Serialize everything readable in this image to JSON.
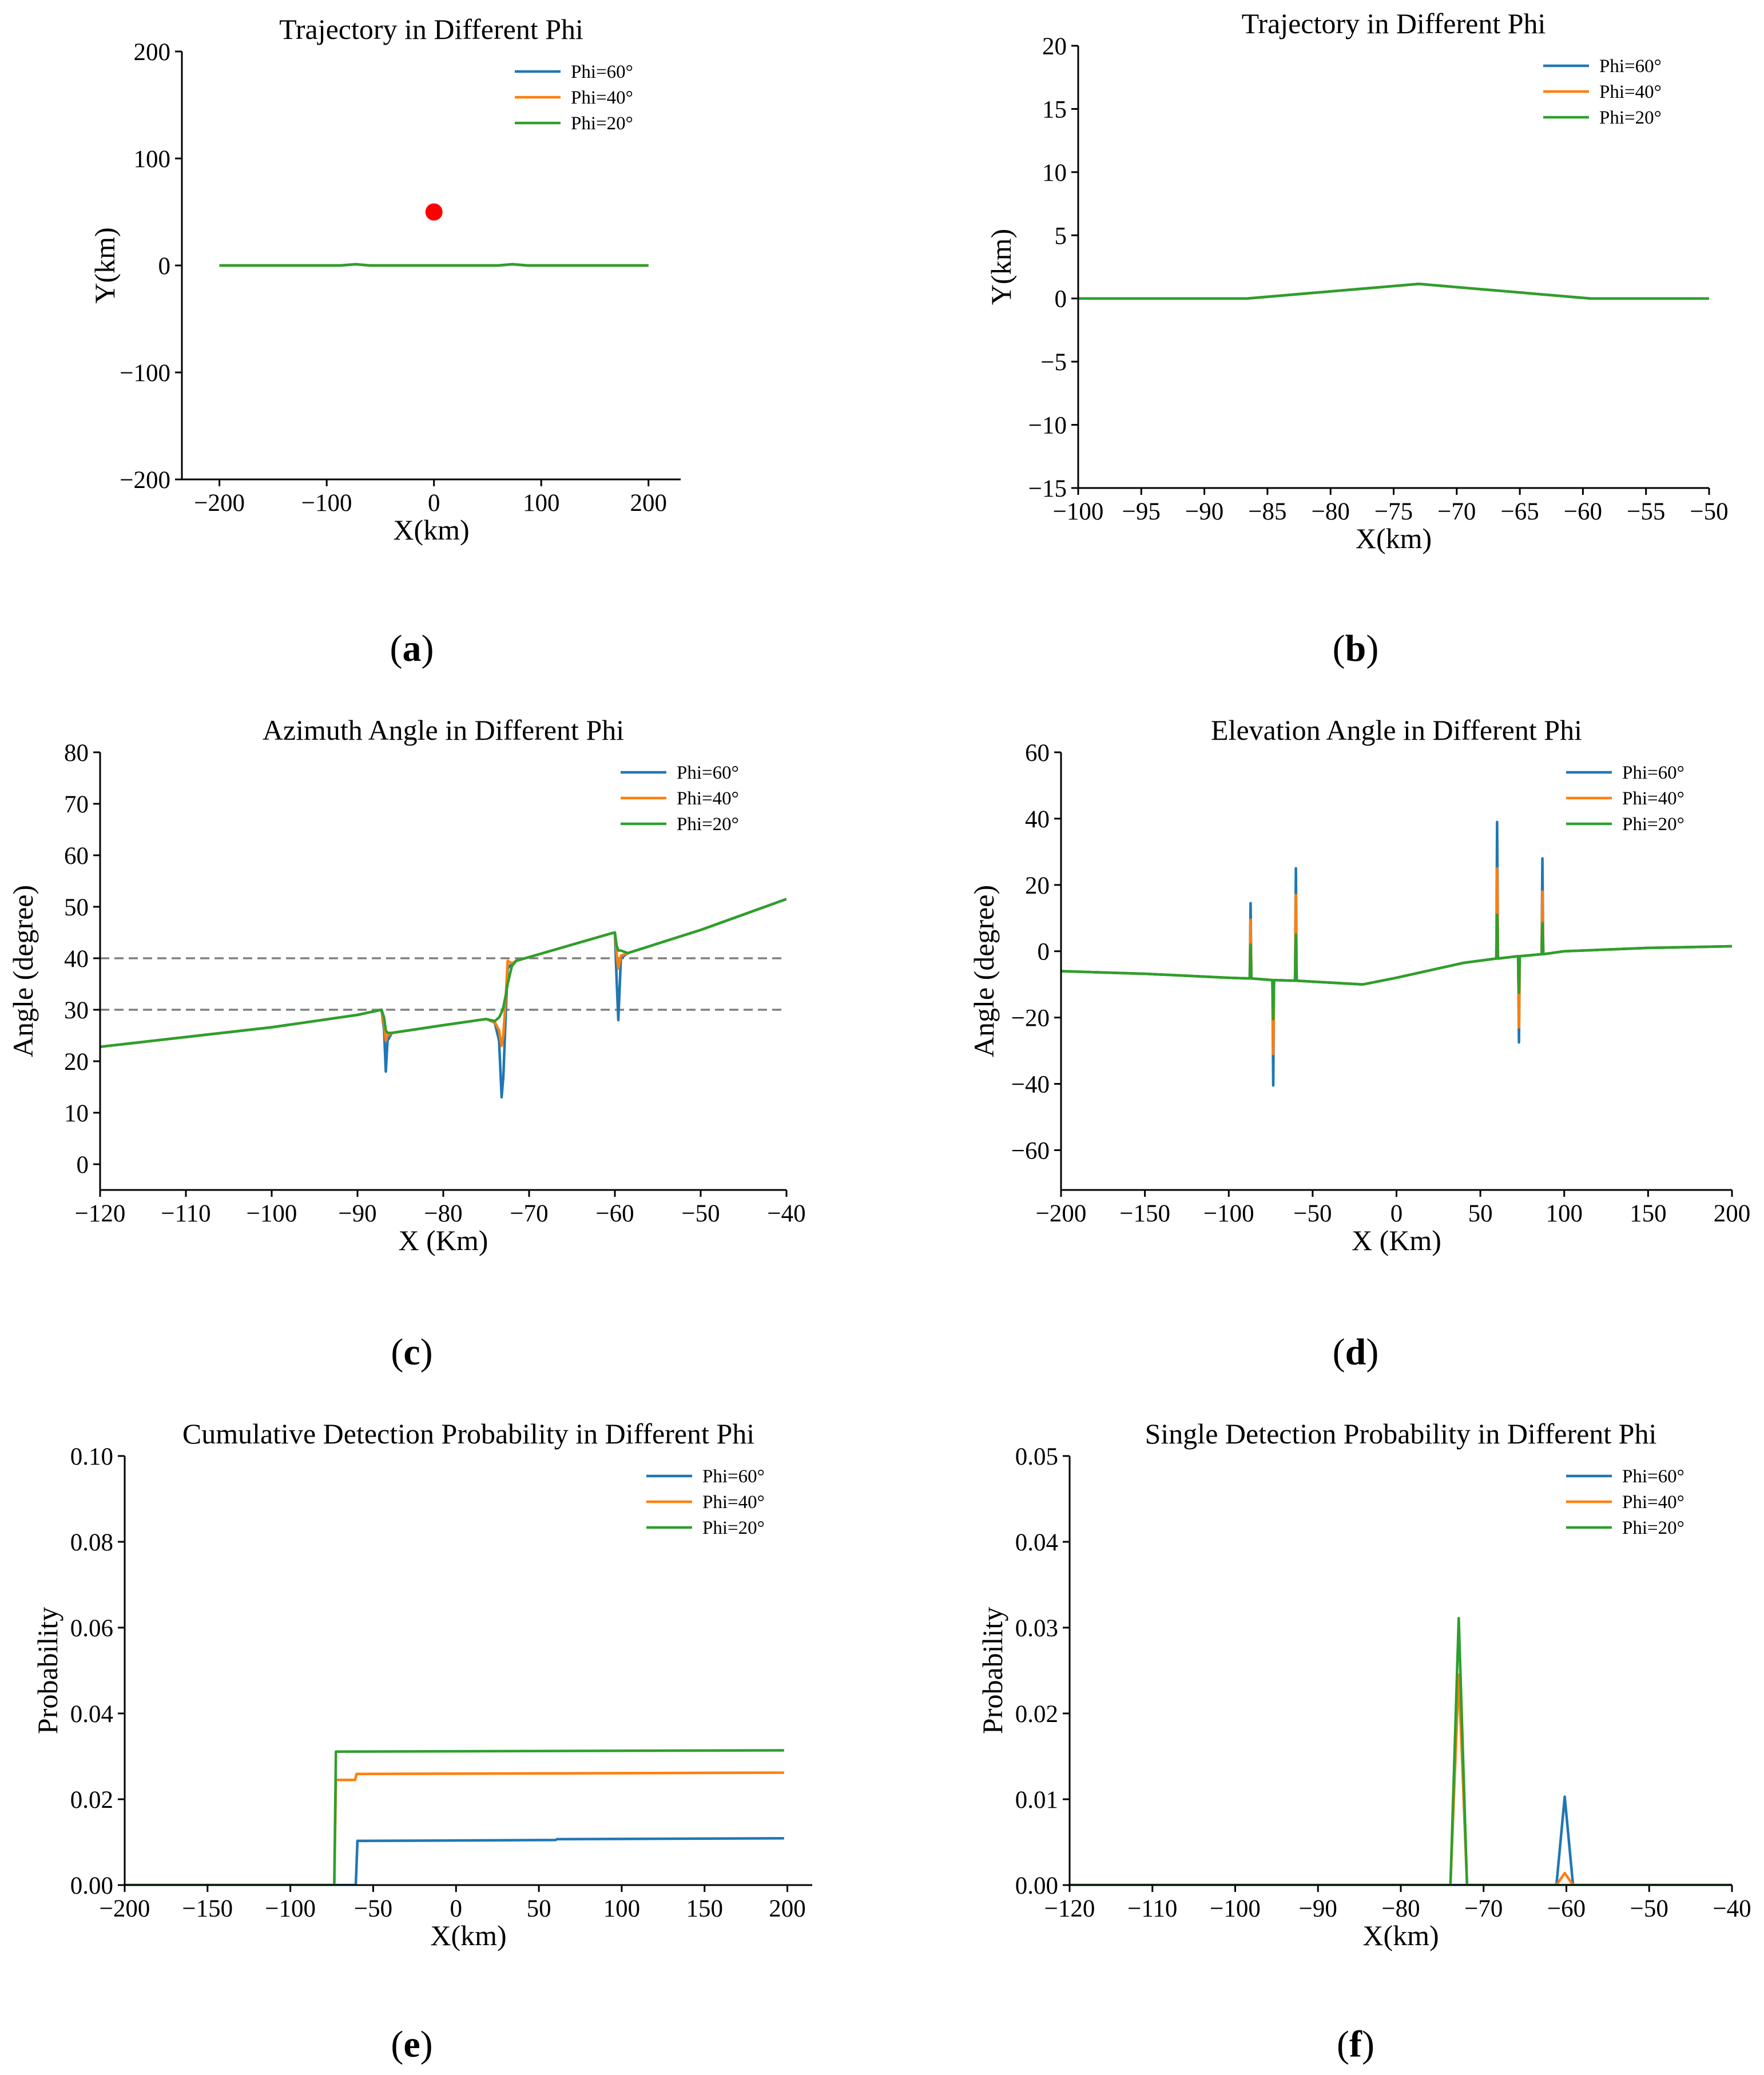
{
  "colors": {
    "phi60": "#1f77b4",
    "phi40": "#ff7f0e",
    "phi20": "#2ca02c",
    "point": "#ff0000",
    "refline": "#808080"
  },
  "chart_data": [
    {
      "id": "a",
      "type": "line",
      "panel_label": "a",
      "title": "Trajectory in Different Phi",
      "xlabel": "X(km)",
      "ylabel": "Y(km)",
      "xlim": [
        -235,
        230
      ],
      "ylim": [
        -200,
        200
      ],
      "xticks": [
        -200,
        -100,
        0,
        100,
        200
      ],
      "yticks": [
        -200,
        -100,
        0,
        100,
        200
      ],
      "xtick_labels": [
        "−200",
        "−100",
        "0",
        "100",
        "200"
      ],
      "ytick_labels": [
        "−200",
        "−100",
        "0",
        "100",
        "200"
      ],
      "legend": [
        "Phi=60°",
        "Phi=40°",
        "Phi=20°"
      ],
      "series": [
        {
          "name": "Phi=60°",
          "color": "#1f77b4",
          "x": [
            -200,
            -87,
            -73,
            -60,
            60,
            73,
            87,
            200
          ],
          "y": [
            0,
            0,
            1.1,
            0,
            0,
            1.1,
            0,
            0
          ]
        },
        {
          "name": "Phi=40°",
          "color": "#ff7f0e",
          "x": [
            -200,
            -87,
            -73,
            -60,
            60,
            73,
            87,
            200
          ],
          "y": [
            0,
            0,
            1.1,
            0,
            0,
            1.1,
            0,
            0
          ]
        },
        {
          "name": "Phi=20°",
          "color": "#2ca02c",
          "x": [
            -200,
            -87,
            -73,
            -60,
            60,
            73,
            87,
            200
          ],
          "y": [
            0,
            0,
            1.1,
            0,
            0,
            1.1,
            0,
            0
          ]
        }
      ],
      "points": [
        {
          "x": 0,
          "y": 50,
          "color": "#ff0000"
        }
      ]
    },
    {
      "id": "b",
      "type": "line",
      "panel_label": "b",
      "title": "Trajectory in Different Phi",
      "xlabel": "X(km)",
      "ylabel": "Y(km)",
      "xlim": [
        -100,
        -50
      ],
      "ylim": [
        -15,
        20
      ],
      "xticks": [
        -100,
        -95,
        -90,
        -85,
        -80,
        -75,
        -70,
        -65,
        -60,
        -55,
        -50
      ],
      "xtick_labels": [
        "−100",
        "−95",
        "−90",
        "−85",
        "−80",
        "−75",
        "−70",
        "−65",
        "−60",
        "−55",
        "−50"
      ],
      "yticks": [
        -15,
        -10,
        -5,
        0,
        5,
        10,
        15,
        20
      ],
      "ytick_labels": [
        "−15",
        "−10",
        "−5",
        "0",
        "5",
        "10",
        "15",
        "20"
      ],
      "legend": [
        "Phi=60°",
        "Phi=40°",
        "Phi=20°"
      ],
      "series": [
        {
          "name": "Phi=60°",
          "color": "#1f77b4",
          "x": [
            -100,
            -86.6,
            -73,
            -59.4,
            -50
          ],
          "y": [
            0,
            0,
            1.15,
            0,
            0
          ]
        },
        {
          "name": "Phi=40°",
          "color": "#ff7f0e",
          "x": [
            -100,
            -86.6,
            -73,
            -59.4,
            -50
          ],
          "y": [
            0,
            0,
            1.15,
            0,
            0
          ]
        },
        {
          "name": "Phi=20°",
          "color": "#2ca02c",
          "x": [
            -100,
            -86.6,
            -73,
            -59.4,
            -50
          ],
          "y": [
            0,
            0,
            1.15,
            0,
            0
          ]
        }
      ]
    },
    {
      "id": "c",
      "type": "line",
      "panel_label": "c",
      "title": "Azimuth Angle in Different Phi",
      "xlabel": "X (Km)",
      "ylabel": "Angle (degree)",
      "xlim": [
        -120,
        -40
      ],
      "ylim": [
        -5,
        80
      ],
      "xticks": [
        -120,
        -110,
        -100,
        -90,
        -80,
        -70,
        -60,
        -50,
        -40
      ],
      "xtick_labels": [
        "−120",
        "−110",
        "−100",
        "−90",
        "−80",
        "−70",
        "−60",
        "−50",
        "−40"
      ],
      "yticks": [
        0,
        10,
        20,
        30,
        40,
        50,
        60,
        70,
        80
      ],
      "ytick_labels": [
        "0",
        "10",
        "20",
        "30",
        "40",
        "50",
        "60",
        "70",
        "80"
      ],
      "hlines": [
        40,
        30
      ],
      "legend": [
        "Phi=60°",
        "Phi=40°",
        "Phi=20°"
      ],
      "series": [
        {
          "name": "Phi=60°",
          "color": "#1f77b4",
          "x": [
            -120,
            -100,
            -90,
            -87.2,
            -86.9,
            -86.7,
            -86.5,
            -86.0,
            -80,
            -75,
            -74,
            -73.5,
            -73.2,
            -73.0,
            -72.7,
            -72.5,
            -72.0,
            -71.5,
            -60.5,
            -60.0,
            -59.8,
            -59.6,
            -59.3,
            -58.5,
            -50,
            -40
          ],
          "y": [
            22.8,
            26.6,
            29.0,
            30.0,
            26,
            18,
            24,
            25.5,
            27.0,
            28.2,
            27.5,
            24,
            13,
            17,
            30,
            38,
            39,
            39.5,
            44.8,
            45.0,
            36,
            28,
            40,
            41,
            45.5,
            51.5
          ]
        },
        {
          "name": "Phi=40°",
          "color": "#ff7f0e",
          "x": [
            -120,
            -100,
            -90,
            -87.2,
            -86.9,
            -86.7,
            -86.5,
            -86.0,
            -80,
            -75,
            -74,
            -73.5,
            -73.2,
            -73.0,
            -72.7,
            -72.5,
            -72.0,
            -71.5,
            -60.5,
            -60.0,
            -59.8,
            -59.6,
            -59.3,
            -58.5,
            -50,
            -40
          ],
          "y": [
            22.8,
            26.6,
            29.0,
            30.0,
            27,
            24,
            25,
            25.5,
            27.0,
            28.2,
            27.6,
            26,
            23,
            25,
            33,
            39.5,
            39,
            39.5,
            44.8,
            45.0,
            41,
            38,
            40.5,
            41,
            45.5,
            51.5
          ]
        },
        {
          "name": "Phi=20°",
          "color": "#2ca02c",
          "x": [
            -120,
            -100,
            -90,
            -87.2,
            -86.9,
            -86.7,
            -86.5,
            -86.0,
            -80,
            -75,
            -74,
            -73.5,
            -73.2,
            -73.0,
            -72.7,
            -72.5,
            -72.0,
            -71.5,
            -60.5,
            -60.0,
            -59.8,
            -59.6,
            -59.3,
            -58.5,
            -50,
            -40
          ],
          "y": [
            22.8,
            26.6,
            29.0,
            30.0,
            28.5,
            26,
            25.5,
            25.5,
            27.0,
            28.2,
            27.8,
            28.5,
            29.5,
            30.5,
            33,
            35,
            38.5,
            39.5,
            44.8,
            45.0,
            42.5,
            41.5,
            41.5,
            41,
            45.5,
            51.5
          ]
        }
      ]
    },
    {
      "id": "d",
      "type": "line",
      "panel_label": "d",
      "title": "Elevation Angle in Different Phi",
      "xlabel": "X (Km)",
      "ylabel": "Angle (degree)",
      "xlim": [
        -200,
        200
      ],
      "ylim": [
        -72,
        60
      ],
      "xticks": [
        -200,
        -150,
        -100,
        -50,
        0,
        50,
        100,
        150,
        200
      ],
      "xtick_labels": [
        "−200",
        "−150",
        "−100",
        "−50",
        "0",
        "50",
        "100",
        "150",
        "200"
      ],
      "yticks": [
        -60,
        -40,
        -20,
        0,
        20,
        40,
        60
      ],
      "ytick_labels": [
        "−60",
        "−40",
        "−20",
        "0",
        "20",
        "40",
        "60"
      ],
      "legend": [
        "Phi=60°",
        "Phi=40°",
        "Phi=20°"
      ],
      "series": [
        {
          "name": "Phi=60°",
          "color": "#1f77b4",
          "x": [
            -200,
            -150,
            -100,
            -87.5,
            -87,
            -86.5,
            -74,
            -73.5,
            -73,
            -60.5,
            -60,
            -59.5,
            -20,
            0,
            40,
            59.5,
            60,
            60.5,
            72.5,
            73,
            73.5,
            86.5,
            87,
            87.5,
            100,
            150,
            200
          ],
          "y": [
            -6,
            -6.8,
            -8,
            -8.2,
            14.5,
            -8.2,
            -8.7,
            -40.5,
            -8.7,
            -8.9,
            25,
            -8.9,
            -10,
            -8,
            -3.5,
            -2.2,
            39,
            -2.2,
            -1.5,
            -27.5,
            -1.5,
            -0.9,
            28,
            -0.9,
            0,
            1,
            1.5
          ]
        },
        {
          "name": "Phi=40°",
          "color": "#ff7f0e",
          "x": [
            -200,
            -150,
            -100,
            -87.5,
            -87,
            -86.5,
            -74,
            -73.5,
            -73,
            -60.5,
            -60,
            -59.5,
            -20,
            0,
            40,
            59.5,
            60,
            60.5,
            72.5,
            73,
            73.5,
            86.5,
            87,
            87.5,
            100,
            150,
            200
          ],
          "y": [
            -6,
            -6.8,
            -8,
            -8.2,
            9.5,
            -8.2,
            -8.7,
            -31,
            -8.7,
            -8.9,
            17,
            -8.9,
            -10,
            -8,
            -3.5,
            -2.2,
            25,
            -2.2,
            -1.5,
            -23,
            -1.5,
            -0.9,
            18,
            -0.9,
            0,
            1,
            1.5
          ]
        },
        {
          "name": "Phi=20°",
          "color": "#2ca02c",
          "x": [
            -200,
            -150,
            -100,
            -87.5,
            -87,
            -86.5,
            -74,
            -73.5,
            -73,
            -60.5,
            -60,
            -59.5,
            -20,
            0,
            40,
            59.5,
            60,
            60.5,
            72.5,
            73,
            73.5,
            86.5,
            87,
            87.5,
            100,
            150,
            200
          ],
          "y": [
            -6,
            -6.8,
            -8,
            -8.2,
            2,
            -8.2,
            -8.7,
            -20.5,
            -8.7,
            -8.9,
            5,
            -8.9,
            -10,
            -8,
            -3.5,
            -2.2,
            11,
            -2.2,
            -1.5,
            -12.5,
            -1.5,
            -0.9,
            8.5,
            -0.9,
            0,
            1,
            1.5
          ]
        }
      ]
    },
    {
      "id": "e",
      "type": "line",
      "panel_label": "e",
      "title": "Cumulative Detection Probability in Different Phi",
      "xlabel": "X(km)",
      "ylabel": "Probability",
      "xlim": [
        -200,
        215
      ],
      "ylim": [
        0,
        0.1
      ],
      "xticks": [
        -200,
        -150,
        -100,
        -50,
        0,
        50,
        100,
        150,
        200
      ],
      "xtick_labels": [
        "−200",
        "−150",
        "−100",
        "−50",
        "0",
        "50",
        "100",
        "150",
        "200"
      ],
      "yticks": [
        0,
        0.02,
        0.04,
        0.06,
        0.08,
        0.1
      ],
      "ytick_labels": [
        "0.00",
        "0.02",
        "0.04",
        "0.06",
        "0.08",
        "0.10"
      ],
      "legend": [
        "Phi=60°",
        "Phi=40°",
        "Phi=20°"
      ],
      "series": [
        {
          "name": "Phi=60°",
          "color": "#1f77b4",
          "x": [
            -200,
            -60.5,
            -59.5,
            60,
            61,
            198
          ],
          "y": [
            0,
            0,
            0.0103,
            0.0105,
            0.0107,
            0.0109
          ]
        },
        {
          "name": "Phi=40°",
          "color": "#ff7f0e",
          "x": [
            -200,
            -73.5,
            -72.5,
            -61,
            -60,
            198
          ],
          "y": [
            0,
            0,
            0.0245,
            0.0245,
            0.0259,
            0.0262
          ]
        },
        {
          "name": "Phi=20°",
          "color": "#2ca02c",
          "x": [
            -200,
            -73.5,
            -72.5,
            198
          ],
          "y": [
            0,
            0,
            0.0311,
            0.0314
          ]
        }
      ]
    },
    {
      "id": "f",
      "type": "line",
      "panel_label": "f",
      "title": "Single Detection Probability in Different Phi",
      "xlabel": "X(km)",
      "ylabel": "Probability",
      "xlim": [
        -120,
        -40
      ],
      "ylim": [
        0,
        0.05
      ],
      "xticks": [
        -120,
        -110,
        -100,
        -90,
        -80,
        -70,
        -60,
        -50,
        -40
      ],
      "xtick_labels": [
        "−120",
        "−110",
        "−100",
        "−90",
        "−80",
        "−70",
        "−60",
        "−50",
        "−40"
      ],
      "yticks": [
        0,
        0.01,
        0.02,
        0.03,
        0.04,
        0.05
      ],
      "ytick_labels": [
        "0.00",
        "0.01",
        "0.02",
        "0.03",
        "0.04",
        "0.05"
      ],
      "legend": [
        "Phi=60°",
        "Phi=40°",
        "Phi=20°"
      ],
      "series": [
        {
          "name": "Phi=60°",
          "color": "#1f77b4",
          "x": [
            -120,
            -61.2,
            -60.2,
            -59.2,
            -40
          ],
          "y": [
            0,
            0,
            0.0103,
            0,
            0
          ]
        },
        {
          "name": "Phi=40°",
          "color": "#ff7f0e",
          "x": [
            -120,
            -74,
            -73,
            -72,
            -61.2,
            -60.2,
            -59.2,
            -40
          ],
          "y": [
            0,
            0,
            0.0245,
            0,
            0,
            0.0014,
            0,
            0
          ]
        },
        {
          "name": "Phi=20°",
          "color": "#2ca02c",
          "x": [
            -120,
            -74,
            -73,
            -72,
            -40
          ],
          "y": [
            0,
            0,
            0.0311,
            0,
            0
          ]
        }
      ]
    }
  ]
}
